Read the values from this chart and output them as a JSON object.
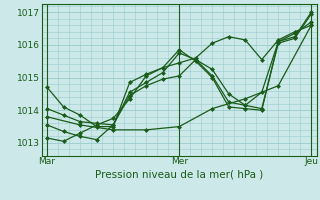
{
  "bg_color": "#cce8e8",
  "grid_color": "#99cccc",
  "line_color": "#1a5c1a",
  "marker_color": "#1a5c1a",
  "xlabel": "Pression niveau de la mer( hPa )",
  "xlabel_color": "#1a5c1a",
  "yticks": [
    1013,
    1014,
    1015,
    1016,
    1017
  ],
  "ylim": [
    1012.6,
    1017.25
  ],
  "xtick_labels": [
    "Mar",
    "Mer",
    "Jeu"
  ],
  "xtick_positions": [
    0,
    48,
    96
  ],
  "xlim": [
    -2,
    98
  ],
  "vline_positions": [
    0,
    48,
    96
  ],
  "series": [
    [
      0,
      1014.05,
      6,
      1013.85,
      12,
      1013.65,
      18,
      1013.6,
      24,
      1013.55,
      30,
      1014.55,
      36,
      1014.85,
      42,
      1015.15,
      48,
      1015.75,
      54,
      1015.55,
      60,
      1015.05,
      66,
      1014.25,
      72,
      1014.15,
      78,
      1014.05,
      84,
      1016.05,
      90,
      1016.2,
      96,
      1016.95
    ],
    [
      0,
      1014.7,
      6,
      1014.1,
      12,
      1013.85,
      18,
      1013.5,
      24,
      1013.5,
      30,
      1014.85,
      36,
      1015.1,
      42,
      1015.3,
      48,
      1015.85,
      54,
      1015.5,
      60,
      1015.0,
      66,
      1014.1,
      72,
      1014.05,
      78,
      1014.0,
      84,
      1016.1,
      90,
      1016.25,
      96,
      1017.0
    ],
    [
      0,
      1013.55,
      6,
      1013.35,
      12,
      1013.2,
      18,
      1013.1,
      24,
      1013.55,
      30,
      1014.45,
      36,
      1014.75,
      42,
      1014.95,
      48,
      1015.05,
      54,
      1015.55,
      60,
      1015.25,
      66,
      1014.5,
      72,
      1014.15,
      78,
      1014.55,
      84,
      1016.1,
      90,
      1016.35,
      96,
      1016.7
    ],
    [
      0,
      1013.15,
      6,
      1013.05,
      12,
      1013.3,
      18,
      1013.55,
      24,
      1013.75,
      30,
      1014.35,
      36,
      1015.05,
      42,
      1015.3,
      48,
      1015.45,
      54,
      1015.6,
      60,
      1016.05,
      66,
      1016.25,
      72,
      1016.15,
      78,
      1015.55,
      84,
      1016.15,
      90,
      1016.4,
      96,
      1016.6
    ],
    [
      0,
      1013.8,
      12,
      1013.55,
      24,
      1013.4,
      36,
      1013.4,
      48,
      1013.5,
      60,
      1014.05,
      72,
      1014.35,
      84,
      1014.75,
      96,
      1016.6
    ]
  ]
}
